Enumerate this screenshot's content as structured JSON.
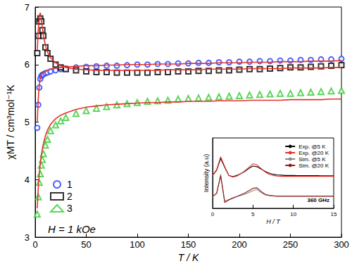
{
  "chart_data": [
    {
      "type": "scatter",
      "x_label": "T / K",
      "y_label": "χMT / cm³mol⁻¹K",
      "annotations": [
        "H = 1 kOe"
      ],
      "xlim": [
        0,
        300
      ],
      "xticks": [
        0,
        50,
        100,
        150,
        200,
        250,
        300
      ],
      "ylim": [
        3,
        7
      ],
      "yticks": [
        3,
        4,
        5,
        6,
        7
      ],
      "grid": false,
      "legend": "lower left",
      "x": [
        2,
        3,
        4,
        5,
        6,
        7,
        8,
        10,
        12,
        15,
        20,
        25,
        30,
        40,
        50,
        60,
        70,
        80,
        90,
        100,
        110,
        120,
        130,
        140,
        150,
        160,
        170,
        180,
        190,
        200,
        210,
        220,
        230,
        240,
        250,
        260,
        270,
        280,
        290,
        300
      ],
      "series": [
        {
          "name": "1",
          "color": "#2040ff",
          "marker": "circle",
          "values": [
            4.9,
            5.3,
            5.6,
            5.75,
            5.8,
            5.82,
            5.83,
            5.85,
            5.86,
            5.88,
            5.9,
            5.92,
            5.93,
            5.95,
            5.96,
            5.97,
            5.98,
            5.98,
            5.99,
            6.0,
            6.0,
            6.01,
            6.01,
            6.02,
            6.02,
            6.03,
            6.03,
            6.04,
            6.04,
            6.05,
            6.05,
            6.06,
            6.06,
            6.07,
            6.07,
            6.08,
            6.08,
            6.09,
            6.09,
            6.1
          ]
        },
        {
          "name": "2",
          "color": "#000000",
          "marker": "square",
          "values": [
            6.2,
            6.5,
            6.75,
            6.8,
            6.75,
            6.6,
            6.5,
            6.3,
            6.2,
            6.1,
            6.0,
            5.95,
            5.92,
            5.9,
            5.88,
            5.87,
            5.87,
            5.86,
            5.86,
            5.86,
            5.86,
            5.87,
            5.87,
            5.88,
            5.88,
            5.89,
            5.89,
            5.9,
            5.9,
            5.91,
            5.92,
            5.92,
            5.93,
            5.94,
            5.95,
            5.95,
            5.96,
            5.97,
            5.98,
            5.99
          ]
        },
        {
          "name": "3",
          "color": "#33cc33",
          "marker": "triangle",
          "values": [
            3.4,
            3.7,
            3.95,
            4.1,
            4.25,
            4.35,
            4.45,
            4.6,
            4.7,
            4.85,
            4.95,
            5.02,
            5.08,
            5.15,
            5.2,
            5.24,
            5.27,
            5.3,
            5.32,
            5.34,
            5.36,
            5.37,
            5.38,
            5.4,
            5.41,
            5.42,
            5.43,
            5.44,
            5.45,
            5.46,
            5.47,
            5.48,
            5.49,
            5.5,
            5.5,
            5.51,
            5.52,
            5.53,
            5.54,
            5.55
          ]
        },
        {
          "type": "line",
          "color": "#e8302a",
          "line_style": "solid",
          "values": [
            5.0,
            5.4,
            5.65,
            5.78,
            5.83,
            5.85,
            5.86,
            5.88,
            5.9,
            5.92,
            5.94,
            5.95,
            5.96,
            5.97,
            5.98,
            5.98,
            5.99,
            5.99,
            6.0,
            6.0,
            6.0,
            6.01,
            6.01,
            6.01,
            6.02,
            6.02,
            6.02,
            6.03,
            6.03,
            6.03,
            6.04,
            6.04,
            6.04,
            6.05,
            6.05,
            6.05,
            6.06,
            6.06,
            6.06,
            6.07
          ]
        },
        {
          "type": "line",
          "color": "#e8302a",
          "line_style": "solid",
          "values": [
            6.25,
            6.6,
            6.85,
            6.9,
            6.8,
            6.65,
            6.52,
            6.33,
            6.22,
            6.12,
            6.03,
            5.98,
            5.95,
            5.92,
            5.91,
            5.9,
            5.9,
            5.9,
            5.9,
            5.9,
            5.9,
            5.9,
            5.91,
            5.91,
            5.91,
            5.91,
            5.92,
            5.92,
            5.92,
            5.92,
            5.93,
            5.93,
            5.93,
            5.93,
            5.94,
            5.94,
            5.94,
            5.94,
            5.95,
            5.95
          ]
        },
        {
          "type": "line",
          "color": "#e8302a",
          "line_style": "solid",
          "values": [
            3.5,
            3.85,
            4.1,
            4.28,
            4.42,
            4.53,
            4.62,
            4.76,
            4.86,
            4.96,
            5.06,
            5.12,
            5.16,
            5.22,
            5.26,
            5.28,
            5.3,
            5.31,
            5.32,
            5.33,
            5.34,
            5.34,
            5.35,
            5.35,
            5.36,
            5.36,
            5.36,
            5.37,
            5.37,
            5.37,
            5.38,
            5.38,
            5.38,
            5.38,
            5.39,
            5.39,
            5.39,
            5.39,
            5.4,
            5.4
          ]
        }
      ]
    },
    {
      "type": "line",
      "x_label": "H / T",
      "y_label": "Intensity (a.u)",
      "annotations": [
        "360 GHz"
      ],
      "xlim": [
        0,
        15
      ],
      "xticks": [
        0,
        5,
        10,
        15
      ],
      "ylim": [
        0,
        12
      ],
      "tick_labels": "x",
      "grid": false,
      "legend": "upper right",
      "x": [
        0,
        0.5,
        1,
        1.5,
        2,
        2.5,
        3,
        3.5,
        4,
        4.5,
        5,
        5.5,
        6,
        6.5,
        7,
        7.5,
        8,
        8.5,
        9,
        9.5,
        10,
        10.5,
        11,
        11.5,
        12,
        12.5,
        13,
        13.5,
        14,
        14.5,
        15
      ],
      "series": [
        {
          "name": "Exp. @5 K",
          "color": "#000000",
          "values": [
            5.6,
            6.5,
            8.5,
            7.0,
            5.6,
            5.4,
            5.6,
            5.9,
            6.3,
            6.8,
            7.2,
            7.1,
            6.7,
            6.3,
            6.0,
            5.8,
            5.7,
            5.65,
            5.6,
            5.6,
            5.6,
            5.58,
            5.58,
            5.57,
            5.57,
            5.56,
            5.56,
            5.55,
            5.55,
            5.55,
            5.55
          ]
        },
        {
          "name": "Exp. @20 K",
          "color": "#e8302a",
          "values": [
            5.6,
            6.6,
            8.8,
            7.1,
            5.6,
            5.3,
            5.5,
            5.9,
            6.4,
            7.0,
            7.6,
            7.4,
            6.8,
            6.2,
            5.8,
            5.6,
            5.5,
            5.45,
            5.45,
            5.45,
            5.45,
            5.45,
            5.45,
            5.45,
            5.45,
            5.45,
            5.45,
            5.45,
            5.45,
            5.45,
            5.45
          ]
        },
        {
          "name": "Sim. @5 K",
          "color": "#888888",
          "values": [
            2.0,
            2.5,
            5.8,
            1.2,
            1.5,
            1.8,
            2.0,
            2.2,
            2.4,
            2.7,
            3.0,
            3.2,
            2.7,
            2.3,
            2.2,
            2.15,
            2.1,
            2.1,
            2.1,
            2.1,
            2.1,
            2.1,
            2.1,
            2.1,
            2.1,
            2.1,
            2.1,
            2.1,
            2.1,
            2.1,
            2.1
          ]
        },
        {
          "name": "Sim. @20 K",
          "color": "#8b1a1a",
          "values": [
            2.0,
            2.6,
            5.5,
            1.0,
            1.4,
            1.7,
            2.0,
            2.3,
            2.6,
            3.0,
            3.4,
            3.5,
            2.9,
            2.4,
            2.2,
            2.1,
            2.05,
            2.05,
            2.05,
            2.05,
            2.05,
            2.05,
            2.05,
            2.05,
            2.05,
            2.05,
            2.05,
            2.05,
            2.05,
            2.05,
            2.05
          ]
        }
      ]
    }
  ]
}
